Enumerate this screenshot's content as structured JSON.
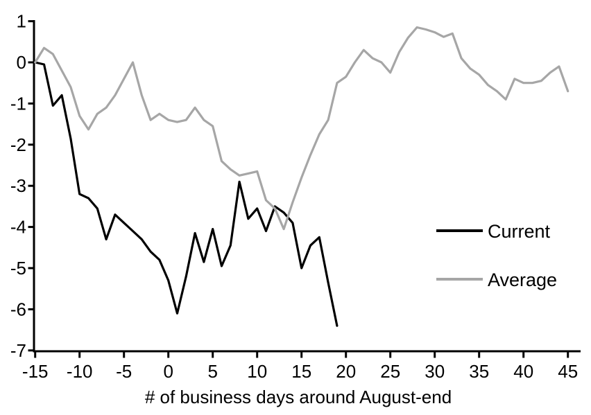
{
  "chart_data": {
    "type": "line",
    "title": "",
    "xlabel": "# of business days around August-end",
    "ylabel": "",
    "x_range": [
      -15,
      45
    ],
    "y_range": [
      -7,
      1
    ],
    "x_ticks": [
      -15,
      -10,
      -5,
      0,
      5,
      10,
      15,
      20,
      25,
      30,
      35,
      40,
      45
    ],
    "y_ticks": [
      1,
      0,
      -1,
      -2,
      -3,
      -4,
      -5,
      -6,
      -7
    ],
    "grid": false,
    "legend_position": "middle-right",
    "series": [
      {
        "name": "Current",
        "color": "#000000",
        "x_start": -15,
        "x_end": 19,
        "values": [
          0,
          -0.05,
          -1.05,
          -0.8,
          -1.85,
          -3.2,
          -3.3,
          -3.55,
          -4.3,
          -3.7,
          -3.9,
          -4.1,
          -4.3,
          -4.6,
          -4.8,
          -5.3,
          -6.1,
          -5.2,
          -4.15,
          -4.85,
          -4.05,
          -4.95,
          -4.45,
          -2.9,
          -3.8,
          -3.55,
          -4.1,
          -3.5,
          -3.65,
          -3.9,
          -5.0,
          -4.45,
          -4.25,
          -5.35,
          -6.4
        ]
      },
      {
        "name": "Average",
        "color": "#a6a6a6",
        "x_start": -15,
        "x_end": 45,
        "values": [
          0,
          0.35,
          0.2,
          -0.2,
          -0.6,
          -1.3,
          -1.63,
          -1.25,
          -1.1,
          -0.8,
          -0.4,
          0.0,
          -0.8,
          -1.4,
          -1.25,
          -1.4,
          -1.45,
          -1.4,
          -1.1,
          -1.4,
          -1.55,
          -2.4,
          -2.6,
          -2.75,
          -2.7,
          -2.65,
          -3.35,
          -3.55,
          -4.05,
          -3.4,
          -2.8,
          -2.25,
          -1.75,
          -1.4,
          -0.5,
          -0.35,
          0.0,
          0.3,
          0.1,
          0.0,
          -0.25,
          0.25,
          0.6,
          0.85,
          0.8,
          0.73,
          0.62,
          0.7,
          0.1,
          -0.15,
          -0.3,
          -0.55,
          -0.7,
          -0.9,
          -0.4,
          -0.5,
          -0.5,
          -0.45,
          -0.25,
          -0.1,
          -0.7
        ]
      }
    ]
  }
}
